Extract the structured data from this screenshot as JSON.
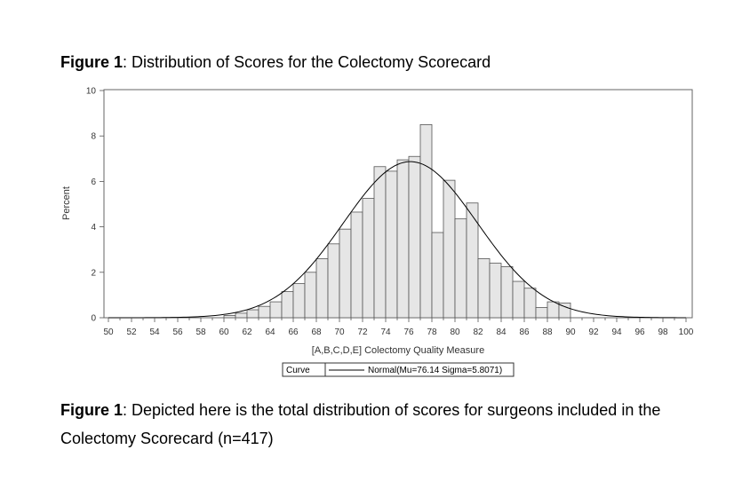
{
  "figure_title": {
    "label": "Figure 1",
    "text": ": Distribution of Scores for the Colectomy Scorecard"
  },
  "caption": {
    "label": "Figure 1",
    "text": ": Depicted here is the total distribution of scores for surgeons included in the Colectomy Scorecard (n=417)"
  },
  "chart_data": {
    "type": "bar",
    "xlabel": "[A,B,C,D,E] Colectomy Quality Measure",
    "ylabel": "Percent",
    "xlim": [
      50,
      100
    ],
    "ylim": [
      0,
      10
    ],
    "x_ticks": [
      50,
      52,
      54,
      56,
      58,
      60,
      62,
      64,
      66,
      68,
      70,
      72,
      74,
      76,
      78,
      80,
      82,
      84,
      86,
      88,
      90,
      92,
      94,
      96,
      98,
      100
    ],
    "y_ticks": [
      0,
      2,
      4,
      6,
      8,
      10
    ],
    "bin_width": 1,
    "bins": [
      {
        "x0": 60,
        "value": 0.1
      },
      {
        "x0": 61,
        "value": 0.2
      },
      {
        "x0": 62,
        "value": 0.35
      },
      {
        "x0": 63,
        "value": 0.5
      },
      {
        "x0": 64,
        "value": 0.7
      },
      {
        "x0": 65,
        "value": 1.15
      },
      {
        "x0": 66,
        "value": 1.5
      },
      {
        "x0": 67,
        "value": 2.0
      },
      {
        "x0": 68,
        "value": 2.6
      },
      {
        "x0": 69,
        "value": 3.25
      },
      {
        "x0": 70,
        "value": 3.9
      },
      {
        "x0": 71,
        "value": 4.65
      },
      {
        "x0": 72,
        "value": 5.25
      },
      {
        "x0": 73,
        "value": 6.65
      },
      {
        "x0": 74,
        "value": 6.45
      },
      {
        "x0": 75,
        "value": 6.95
      },
      {
        "x0": 76,
        "value": 7.1
      },
      {
        "x0": 77,
        "value": 8.5
      },
      {
        "x0": 78,
        "value": 3.75
      },
      {
        "x0": 79,
        "value": 6.05
      },
      {
        "x0": 80,
        "value": 4.35
      },
      {
        "x0": 81,
        "value": 5.05
      },
      {
        "x0": 82,
        "value": 2.6
      },
      {
        "x0": 83,
        "value": 2.4
      },
      {
        "x0": 84,
        "value": 2.25
      },
      {
        "x0": 85,
        "value": 1.6
      },
      {
        "x0": 86,
        "value": 1.3
      },
      {
        "x0": 87,
        "value": 0.45
      },
      {
        "x0": 88,
        "value": 0.7
      },
      {
        "x0": 89,
        "value": 0.65
      }
    ],
    "curve": {
      "mu": 76.14,
      "sigma": 5.8071
    },
    "legend": {
      "title": "Curve",
      "entry": "Normal(Mu=76.14 Sigma=5.8071)"
    },
    "colors": {
      "bar_fill": "#e6e6e6",
      "bar_stroke": "#555555",
      "curve": "#000000",
      "frame": "#666666"
    }
  }
}
